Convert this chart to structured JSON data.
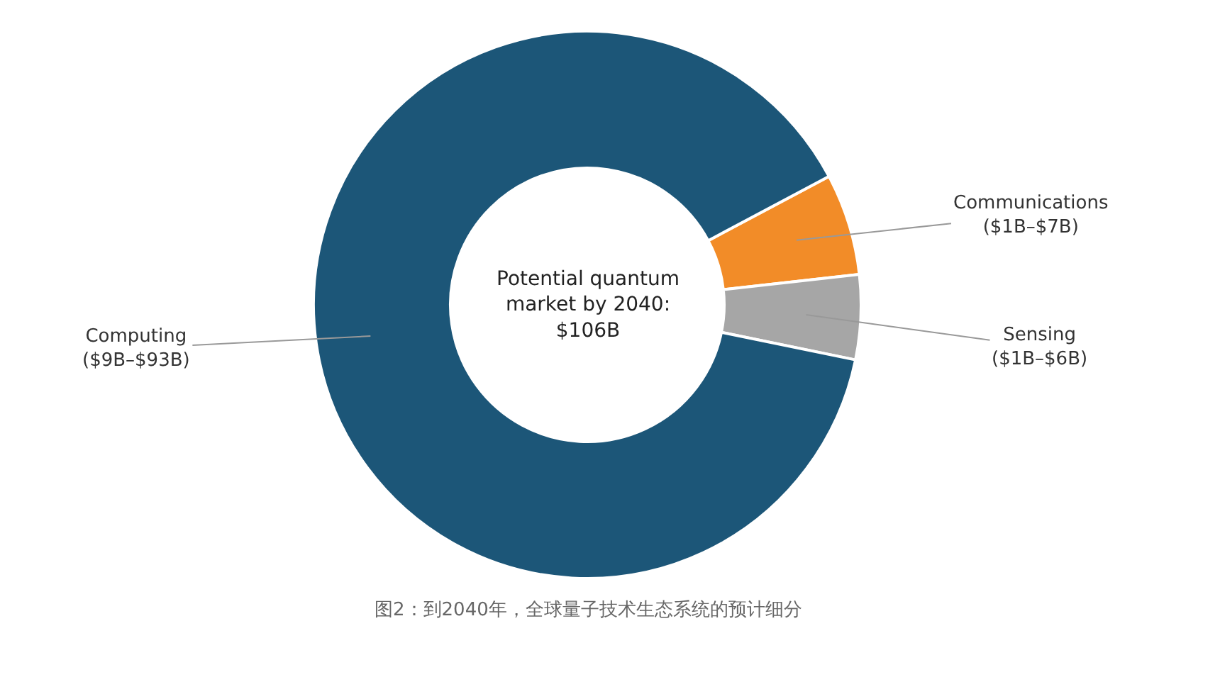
{
  "chart_data": {
    "type": "donut",
    "categories": [
      "Communications",
      "Sensing",
      "Computing"
    ],
    "values": [
      6,
      5,
      89
    ],
    "value_labels": [
      "($1B–$7B)",
      "($1B–$6B)",
      "($9B–$93B)"
    ],
    "colors": [
      "#f28c28",
      "#a6a6a6",
      "#1c5678"
    ],
    "legend": false,
    "annotations": [
      "Potential quantum\nmarket by 2040:\n$106B",
      "图2：到2040年，全球量子技术生态系统的预计细分"
    ]
  }
}
